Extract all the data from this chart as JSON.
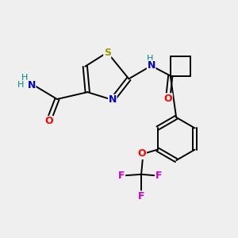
{
  "bg_color": "#efefef",
  "atom_colors": {
    "C": "#000000",
    "N": "#0000cc",
    "O": "#ff0000",
    "S": "#999900",
    "F": "#cc00cc",
    "H": "#008888"
  }
}
